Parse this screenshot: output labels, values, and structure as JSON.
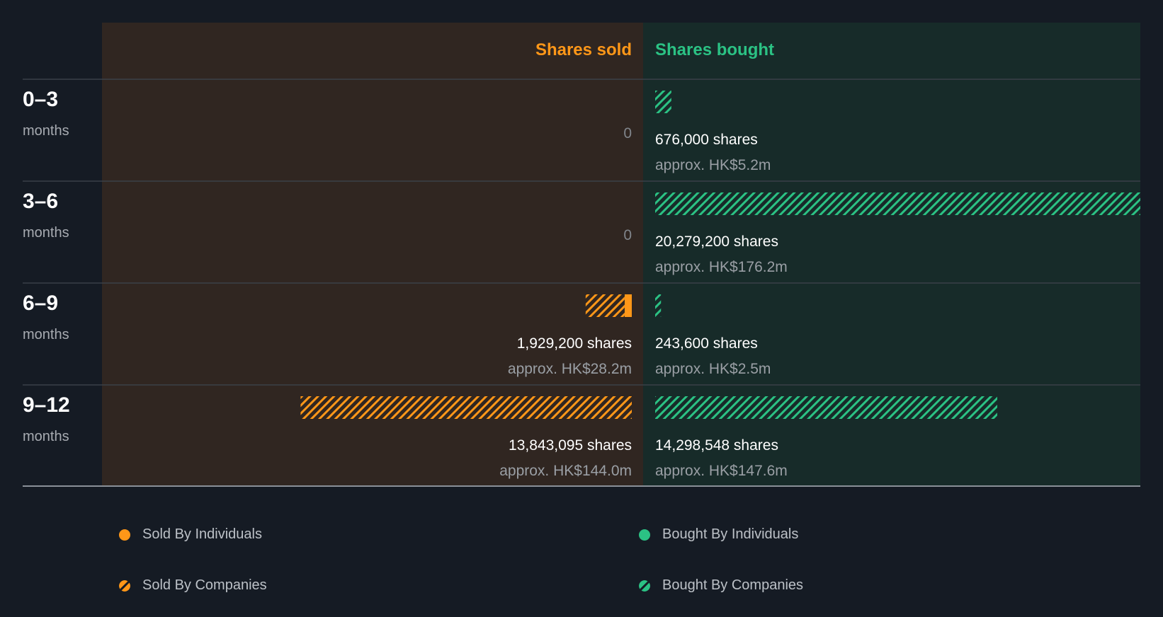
{
  "colors": {
    "background": "#151b24",
    "sold_panel": "#302621",
    "bought_panel": "#172b29",
    "sold": "#ff9718",
    "bought": "#2bc284",
    "row_label": "#ffffff",
    "row_sublabel": "#a7abb1",
    "value_primary": "#ffffff",
    "value_secondary": "#9a9fa5",
    "zero": "#80858b"
  },
  "chart_data": {
    "type": "bar",
    "orientation": "horizontal-diverging",
    "headers": {
      "sold": "Shares sold",
      "bought": "Shares bought"
    },
    "zero_label": "0",
    "rows": [
      {
        "label": "0–3",
        "sublabel": "months",
        "sold": {
          "individuals": 0,
          "companies": 0,
          "shares_text": "",
          "value_text": ""
        },
        "bought": {
          "individuals": 0,
          "companies": 676000,
          "shares_text": "676,000 shares",
          "value_text": "approx. HK$5.2m"
        }
      },
      {
        "label": "3–6",
        "sublabel": "months",
        "sold": {
          "individuals": 0,
          "companies": 0,
          "shares_text": "",
          "value_text": ""
        },
        "bought": {
          "individuals": 0,
          "companies": 20279200,
          "shares_text": "20,279,200 shares",
          "value_text": "approx. HK$176.2m"
        }
      },
      {
        "label": "6–9",
        "sublabel": "months",
        "sold": {
          "individuals": 300000,
          "companies": 1629200,
          "shares_text": "1,929,200 shares",
          "value_text": "approx. HK$28.2m"
        },
        "bought": {
          "individuals": 0,
          "companies": 243600,
          "shares_text": "243,600 shares",
          "value_text": "approx. HK$2.5m"
        }
      },
      {
        "label": "9–12",
        "sublabel": "months",
        "sold": {
          "individuals": 0,
          "companies": 13843095,
          "shares_text": "13,843,095 shares",
          "value_text": "approx. HK$144.0m"
        },
        "bought": {
          "individuals": 0,
          "companies": 14298548,
          "shares_text": "14,298,548 shares",
          "value_text": "approx. HK$147.6m"
        }
      }
    ],
    "legend": [
      {
        "label": "Sold By Individuals",
        "series": "sold",
        "pattern": "solid"
      },
      {
        "label": "Bought By Individuals",
        "series": "bought",
        "pattern": "solid"
      },
      {
        "label": "Sold By Companies",
        "series": "sold",
        "pattern": "hatched"
      },
      {
        "label": "Bought By Companies",
        "series": "bought",
        "pattern": "hatched"
      }
    ]
  }
}
